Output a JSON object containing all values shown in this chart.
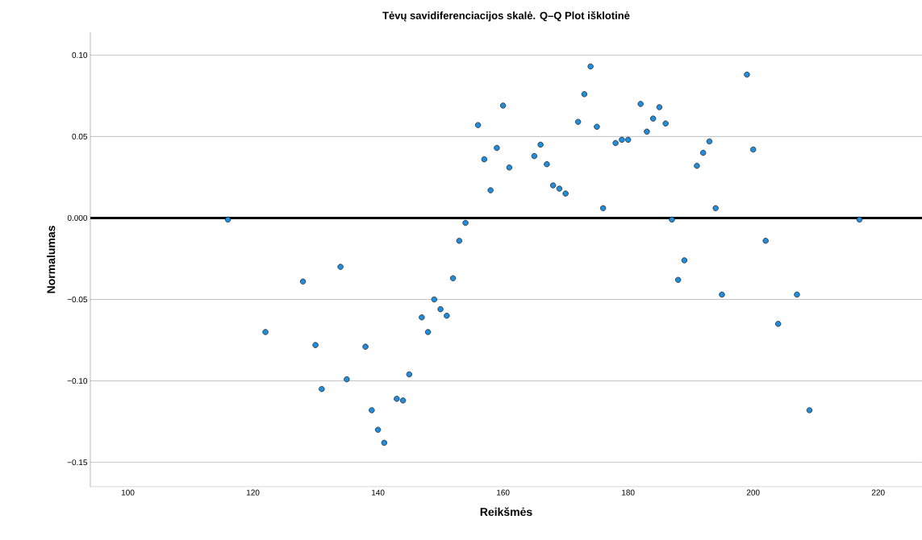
{
  "chart_data": {
    "type": "scatter",
    "title": "Tėvų savidiferenciacijos skalė. Q–Q Plot išklotinė",
    "xlabel": "Reikšmės",
    "ylabel": "Normalumas",
    "x": [
      116,
      122,
      128,
      130,
      131,
      134,
      135,
      138,
      139,
      140,
      141,
      143,
      144,
      145,
      147,
      148,
      149,
      150,
      151,
      152,
      153,
      154,
      156,
      157,
      158,
      159,
      160,
      161,
      165,
      166,
      167,
      168,
      169,
      170,
      172,
      173,
      174,
      175,
      176,
      178,
      179,
      180,
      182,
      183,
      184,
      185,
      186,
      187,
      188,
      189,
      191,
      192,
      193,
      194,
      195,
      199,
      200,
      202,
      204,
      207,
      209,
      217
    ],
    "series": [
      {
        "color": "#1e8fe0",
        "values": [
          -0.001,
          -0.07,
          -0.039,
          -0.078,
          -0.105,
          -0.03,
          -0.099,
          -0.079,
          -0.118,
          -0.13,
          -0.138,
          -0.111,
          -0.112,
          -0.096,
          -0.061,
          -0.07,
          -0.05,
          -0.056,
          -0.06,
          -0.037,
          -0.014,
          -0.003,
          0.057,
          0.036,
          0.017,
          0.043,
          0.069,
          0.031,
          0.038,
          0.045,
          0.033,
          0.02,
          0.018,
          0.015,
          0.059,
          0.076,
          0.093,
          0.056,
          0.006,
          0.046,
          0.048,
          0.048,
          0.07,
          0.053,
          0.061,
          0.068,
          0.058,
          -0.001,
          -0.038,
          -0.026,
          0.032,
          0.04,
          0.047,
          0.006,
          -0.047,
          0.088,
          0.042,
          -0.014,
          -0.065,
          -0.047,
          -0.118,
          -0.001
        ]
      }
    ],
    "xlim": [
      94,
      227
    ],
    "ylim": [
      -0.165,
      0.114
    ],
    "xticks": [
      100,
      120,
      140,
      160,
      180,
      200,
      220
    ],
    "yticks": [
      {
        "value": 0.1,
        "label": "0.10"
      },
      {
        "value": 0.05,
        "label": "0.05"
      },
      {
        "value": 0,
        "label": "0.000"
      },
      {
        "value": -0.05,
        "label": "−0.05"
      },
      {
        "value": -0.1,
        "label": "−0.10"
      },
      {
        "value": -0.15,
        "label": "−0.15"
      }
    ],
    "ref_lines": [
      {
        "axis": "y",
        "value": 0,
        "color": "#000000"
      }
    ],
    "grid": "y",
    "marker": "circle"
  }
}
